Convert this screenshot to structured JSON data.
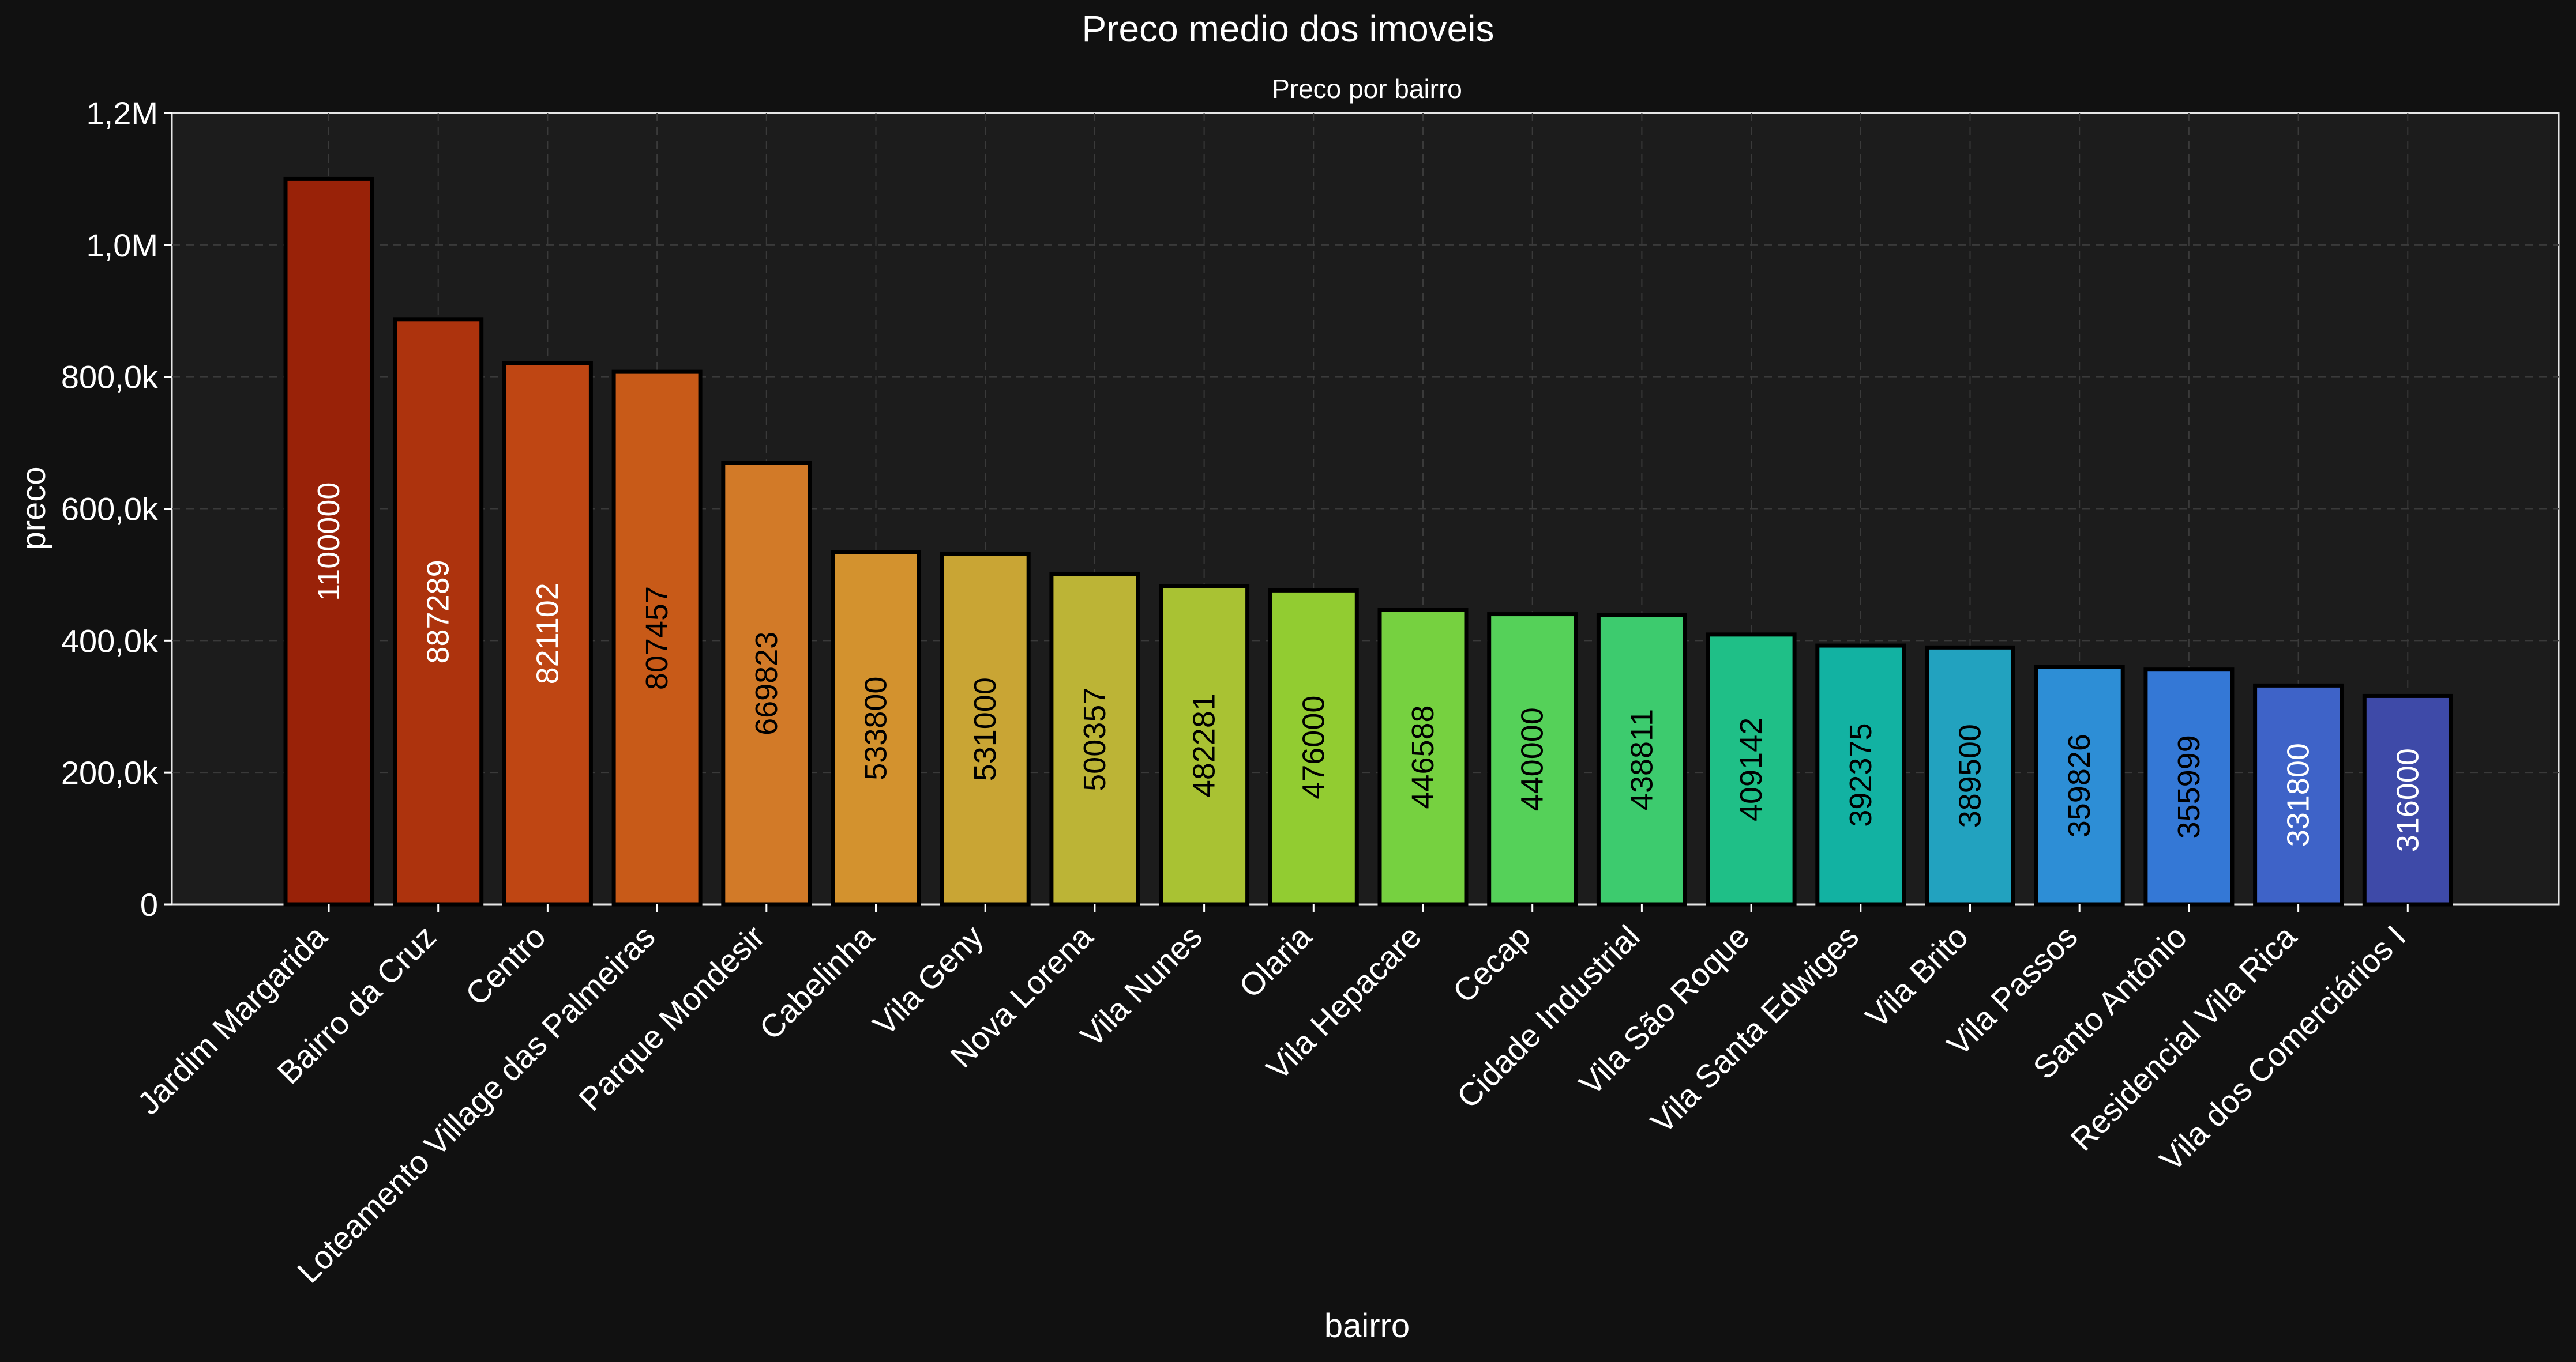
{
  "chart_data": {
    "type": "bar",
    "suptitle": "Preco medio dos imoveis",
    "title": "Preco por bairro",
    "xlabel": "bairro",
    "ylabel": "preco",
    "ylim": [
      0,
      1200000
    ],
    "yticks": [
      {
        "value": 0,
        "label": "0"
      },
      {
        "value": 200000,
        "label": "200,0k"
      },
      {
        "value": 400000,
        "label": "400,0k"
      },
      {
        "value": 600000,
        "label": "600,0k"
      },
      {
        "value": 800000,
        "label": "800,0k"
      },
      {
        "value": 1000000,
        "label": "1,0M"
      },
      {
        "value": 1200000,
        "label": "1,2M"
      }
    ],
    "grid": true,
    "categories": [
      "Jardim Margarida",
      "Bairro da Cruz",
      "Centro",
      "Loteamento Village das Palmeiras",
      "Parque Mondesir",
      "Cabelinha",
      "Vila Geny",
      "Nova Lorena",
      "Vila Nunes",
      "Olaria",
      "Vila Hepacare",
      "Cecap",
      "Cidade Industrial",
      "Vila São Roque",
      "Vila Santa Edwiges",
      "Vila Brito",
      "Vila Passos",
      "Santo Antônio",
      "Residencial Vila Rica",
      "Vila dos Comerciários I"
    ],
    "values": [
      1100000,
      887289,
      821102,
      807457,
      669823,
      533800,
      531000,
      500357,
      482281,
      476000,
      446588,
      440000,
      438811,
      409142,
      392375,
      389500,
      359826,
      355999,
      331800,
      316000
    ],
    "value_labels": [
      "1100000",
      "887289",
      "821102",
      "807457",
      "669823",
      "533800",
      "531000",
      "500357",
      "482281",
      "476000",
      "446588",
      "440000",
      "438811",
      "409142",
      "392375",
      "389500",
      "359826",
      "355999",
      "331800",
      "316000"
    ],
    "colors": [
      "#992208",
      "#ad330d",
      "#bf4613",
      "#c85a18",
      "#d27a28",
      "#d3922e",
      "#c9a534",
      "#bcb436",
      "#a9c233",
      "#92cc31",
      "#76d140",
      "#55d159",
      "#3dcb6e",
      "#1fbf87",
      "#12b2a2",
      "#22a2bf",
      "#2d8ed6",
      "#3478d6",
      "#3e63c8",
      "#3e4aa8"
    ],
    "label_colors": [
      "#ffffff",
      "#ffffff",
      "#ffffff",
      "#000000",
      "#000000",
      "#000000",
      "#000000",
      "#000000",
      "#000000",
      "#000000",
      "#000000",
      "#000000",
      "#000000",
      "#000000",
      "#000000",
      "#000000",
      "#000000",
      "#000000",
      "#ffffff",
      "#ffffff"
    ],
    "background": "#111111",
    "plot_background": "#1c1c1c"
  }
}
